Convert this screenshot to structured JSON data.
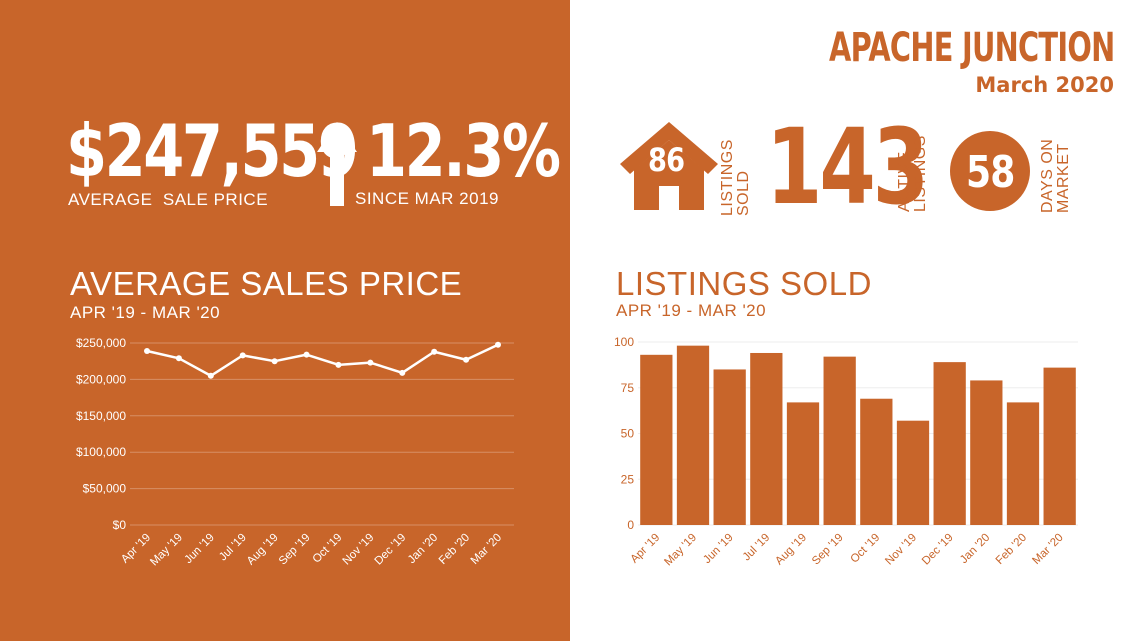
{
  "header": {
    "city": "APACHE JUNCTION",
    "period": "March 2020"
  },
  "stats": {
    "avg_price": "$247,559",
    "avg_price_label": "AVERAGE  SALE PRICE",
    "change": "12.3%",
    "change_label": "SINCE MAR 2019",
    "listings_sold": "86",
    "listings_sold_label_1": "LISTINGS",
    "listings_sold_label_2": "SOLD",
    "active_listings": "143",
    "active_listings_label_1": "ACTIVE",
    "active_listings_label_2": "LISTINGS",
    "days_on_market": "58",
    "days_on_market_label_1": "DAYS ON",
    "days_on_market_label_2": "MARKET"
  },
  "icons": {
    "house": "house-icon",
    "arrow": "arrow-up-icon"
  },
  "colors": {
    "accent": "#c8652a",
    "white": "#ffffff"
  },
  "chart_data": [
    {
      "type": "line",
      "title": "AVERAGE SALES PRICE",
      "subtitle": "APR '19 - MAR '20",
      "categories": [
        "Apr '19",
        "May '19",
        "Jun '19",
        "Jul '19",
        "Aug '19",
        "Sep '19",
        "Oct '19",
        "Nov '19",
        "Dec '19",
        "Jan '20",
        "Feb '20",
        "Mar '20"
      ],
      "values": [
        239000,
        229000,
        205000,
        233000,
        225000,
        234000,
        220000,
        223000,
        209000,
        238000,
        227000,
        247559
      ],
      "ylim": [
        0,
        250000
      ],
      "yticks": [
        "$0",
        "$50,000",
        "$100,000",
        "$150,000",
        "$200,000",
        "$250,000"
      ],
      "grid": true
    },
    {
      "type": "bar",
      "title": "LISTINGS SOLD",
      "subtitle": "APR '19 - MAR '20",
      "categories": [
        "Apr '19",
        "May '19",
        "Jun '19",
        "Jul '19",
        "Aug '19",
        "Sep '19",
        "Oct '19",
        "Nov '19",
        "Dec '19",
        "Jan '20",
        "Feb '20",
        "Mar '20"
      ],
      "values": [
        93,
        98,
        85,
        94,
        67,
        92,
        69,
        57,
        89,
        79,
        67,
        86
      ],
      "ylim": [
        0,
        100
      ],
      "yticks": [
        "0",
        "25",
        "50",
        "75",
        "100"
      ],
      "grid": true
    }
  ]
}
